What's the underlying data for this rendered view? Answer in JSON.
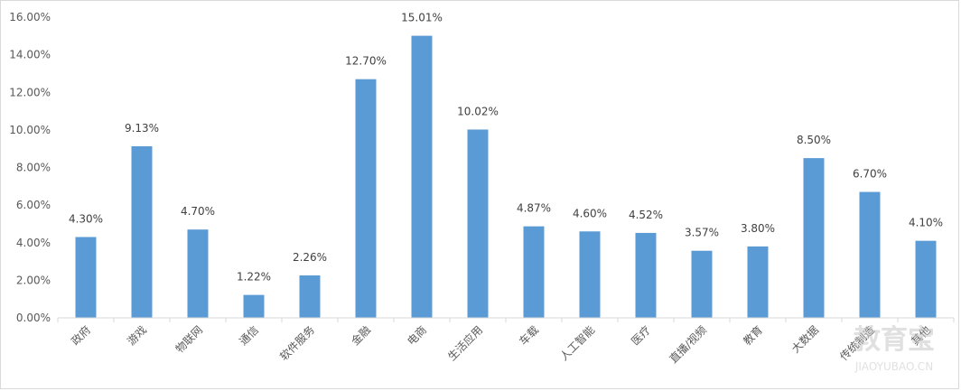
{
  "chart_data": {
    "type": "bar",
    "categories": [
      "政府",
      "游戏",
      "物联网",
      "通信",
      "软件服务",
      "金融",
      "电商",
      "生活应用",
      "车载",
      "人工智能",
      "医疗",
      "直播/视频",
      "教育",
      "大数据",
      "传统制造",
      "其他"
    ],
    "values": [
      4.3,
      9.13,
      4.7,
      1.22,
      2.26,
      12.7,
      15.01,
      10.02,
      4.87,
      4.6,
      4.52,
      3.57,
      3.8,
      8.5,
      6.7,
      4.1
    ],
    "data_labels": [
      "4.30%",
      "9.13%",
      "4.70%",
      "1.22%",
      "2.26%",
      "12.70%",
      "15.01%",
      "10.02%",
      "4.87%",
      "4.60%",
      "4.52%",
      "3.57%",
      "3.80%",
      "8.50%",
      "6.70%",
      "4.10%"
    ],
    "y_ticks": [
      0,
      2,
      4,
      6,
      8,
      10,
      12,
      14,
      16
    ],
    "y_tick_labels": [
      "0.00%",
      "2.00%",
      "4.00%",
      "6.00%",
      "8.00%",
      "10.00%",
      "12.00%",
      "14.00%",
      "16.00%"
    ],
    "ylim": [
      0,
      16
    ],
    "grid": false,
    "legend": "none",
    "bar_color": "#5b9bd5",
    "axis_color": "#d9d9d9"
  },
  "watermark": {
    "text": "教育宝",
    "subtext": "JIAOYUBAO.CN"
  }
}
